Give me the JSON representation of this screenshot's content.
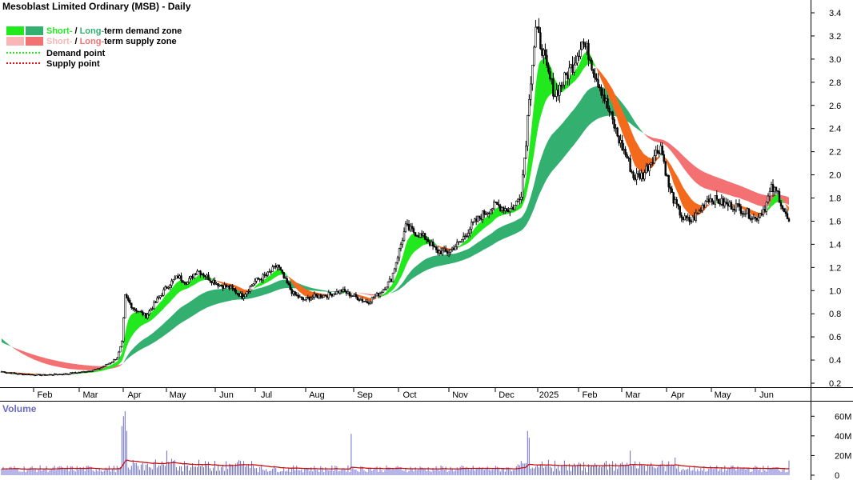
{
  "chart_data": {
    "type": "candlestick",
    "title": "Mesoblast Limited Ordinary (MSB) - Daily",
    "legend": {
      "demand_zone": {
        "short": "Short-",
        "sep": " / ",
        "long": "Long-",
        "rest": "term demand zone"
      },
      "supply_zone": {
        "short": "Short-",
        "sep": " / ",
        "long": "Long-",
        "rest": "term supply zone"
      },
      "demand_point": "Demand point",
      "supply_point": "Supply point"
    },
    "colors": {
      "short_demand": "#22e81e",
      "long_demand": "#33b070",
      "short_supply": "#f9b6b6",
      "long_supply": "#f37172",
      "transition_supply": "#f46a1c",
      "volume_bar": "#6b6bd0",
      "volume_ma": "#cc1010",
      "candle": "#000000",
      "axis": "#000000"
    },
    "x_ticks": [
      "Feb",
      "Mar",
      "Apr",
      "May",
      "Jun",
      "Jul",
      "Aug",
      "Sep",
      "Oct",
      "Nov",
      "Dec",
      "2025",
      "Feb",
      "Mar",
      "Apr",
      "May",
      "Jun"
    ],
    "y_ticks": [
      "3.4",
      "3.2",
      "3.0",
      "2.8",
      "2.6",
      "2.4",
      "2.2",
      "2.0",
      "1.8",
      "1.6",
      "1.4",
      "1.2",
      "1.0",
      "0.8",
      "0.6",
      "0.4",
      "0.2"
    ],
    "ylim": [
      0.1,
      3.48
    ],
    "price_anchors": [
      [
        0,
        0.3
      ],
      [
        10,
        0.28
      ],
      [
        25,
        0.27
      ],
      [
        40,
        0.28
      ],
      [
        52,
        0.3
      ],
      [
        60,
        0.32
      ],
      [
        68,
        0.38
      ],
      [
        72,
        0.42
      ],
      [
        75,
        0.55
      ],
      [
        77,
        0.95
      ],
      [
        82,
        0.85
      ],
      [
        90,
        0.78
      ],
      [
        97,
        0.92
      ],
      [
        104,
        1.05
      ],
      [
        110,
        1.12
      ],
      [
        116,
        1.07
      ],
      [
        122,
        1.18
      ],
      [
        130,
        1.1
      ],
      [
        136,
        1.05
      ],
      [
        143,
        1.02
      ],
      [
        150,
        0.95
      ],
      [
        158,
        1.08
      ],
      [
        166,
        1.14
      ],
      [
        172,
        1.22
      ],
      [
        177,
        1.08
      ],
      [
        182,
        0.97
      ],
      [
        188,
        0.92
      ],
      [
        195,
        0.95
      ],
      [
        203,
        0.96
      ],
      [
        212,
        1.0
      ],
      [
        220,
        0.95
      ],
      [
        228,
        0.9
      ],
      [
        236,
        0.98
      ],
      [
        243,
        1.1
      ],
      [
        248,
        1.35
      ],
      [
        252,
        1.55
      ],
      [
        258,
        1.5
      ],
      [
        265,
        1.45
      ],
      [
        271,
        1.34
      ],
      [
        278,
        1.33
      ],
      [
        286,
        1.42
      ],
      [
        293,
        1.56
      ],
      [
        300,
        1.66
      ],
      [
        308,
        1.74
      ],
      [
        316,
        1.7
      ],
      [
        320,
        1.73
      ],
      [
        324,
        1.85
      ],
      [
        327,
        2.3
      ],
      [
        329,
        2.7
      ],
      [
        333,
        3.25
      ],
      [
        337,
        3.1
      ],
      [
        340,
        2.9
      ],
      [
        345,
        2.7
      ],
      [
        350,
        2.8
      ],
      [
        356,
        2.95
      ],
      [
        362,
        3.15
      ],
      [
        366,
        3.05
      ],
      [
        370,
        2.88
      ],
      [
        375,
        2.7
      ],
      [
        380,
        2.5
      ],
      [
        385,
        2.3
      ],
      [
        390,
        2.15
      ],
      [
        394,
        1.98
      ],
      [
        400,
        2.0
      ],
      [
        406,
        2.15
      ],
      [
        411,
        2.25
      ],
      [
        416,
        1.9
      ],
      [
        420,
        1.75
      ],
      [
        425,
        1.62
      ],
      [
        430,
        1.6
      ],
      [
        435,
        1.68
      ],
      [
        440,
        1.8
      ],
      [
        446,
        1.78
      ],
      [
        452,
        1.74
      ],
      [
        458,
        1.73
      ],
      [
        464,
        1.68
      ],
      [
        470,
        1.62
      ],
      [
        476,
        1.72
      ],
      [
        480,
        1.88
      ],
      [
        484,
        1.84
      ],
      [
        488,
        1.68
      ],
      [
        491,
        1.58
      ]
    ],
    "volume": {
      "label": "Volume",
      "y_ticks": [
        "60M",
        "40M",
        "20M",
        "0"
      ],
      "ylim": [
        0,
        70
      ],
      "spikes": [
        [
          75,
          50
        ],
        [
          76,
          60
        ],
        [
          77,
          65
        ],
        [
          78,
          45
        ],
        [
          103,
          25
        ],
        [
          218,
          42
        ],
        [
          328,
          45
        ],
        [
          329,
          38
        ],
        [
          392,
          25
        ],
        [
          412,
          15
        ],
        [
          420,
          18
        ],
        [
          491,
          15
        ]
      ]
    }
  }
}
